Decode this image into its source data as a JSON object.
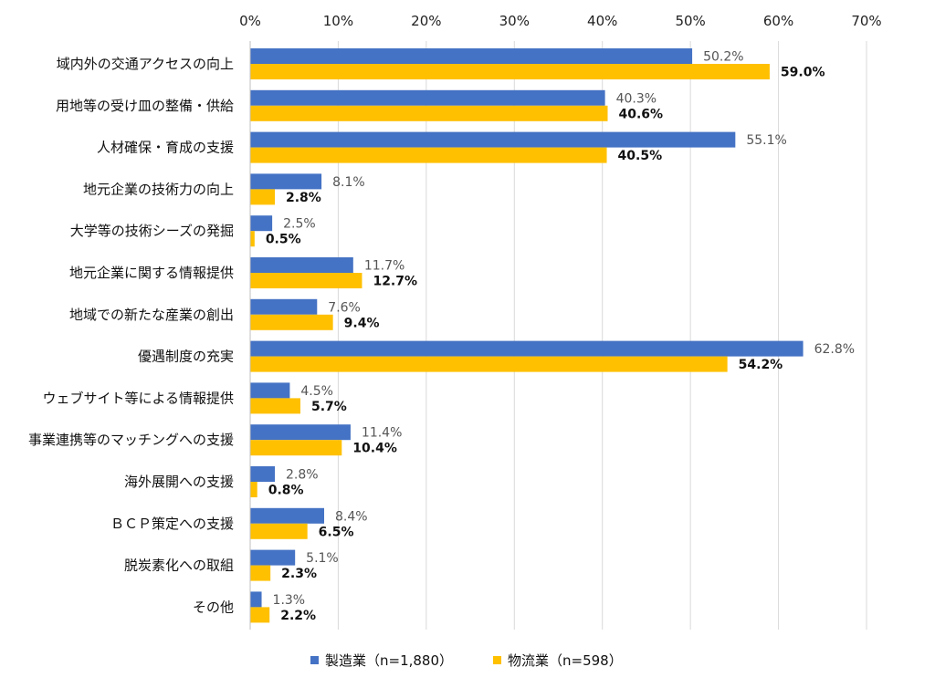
{
  "chart_data": {
    "type": "bar",
    "orientation": "horizontal",
    "x_ticks": [
      "0%",
      "10%",
      "20%",
      "30%",
      "40%",
      "50%",
      "60%",
      "70%"
    ],
    "xlim": [
      0,
      70
    ],
    "grid": true,
    "legend_position": "bottom",
    "categories": [
      "域内外の交通アクセスの向上",
      "用地等の受け皿の整備・供給",
      "人材確保・育成の支援",
      "地元企業の技術力の向上",
      "大学等の技術シーズの発掘",
      "地元企業に関する情報提供",
      "地域での新たな産業の創出",
      "優遇制度の充実",
      "ウェブサイト等による情報提供",
      "事業連携等のマッチングへの支援",
      "海外展開への支援",
      "ＢＣＰ策定への支援",
      "脱炭素化への取組",
      "その他"
    ],
    "series": [
      {
        "name": "製造業（n=1,880）",
        "color": "#4472C4",
        "values": [
          50.2,
          40.3,
          55.1,
          8.1,
          2.5,
          11.7,
          7.6,
          62.8,
          4.5,
          11.4,
          2.8,
          8.4,
          5.1,
          1.3
        ],
        "labels": [
          "50.2%",
          "40.3%",
          "55.1%",
          "8.1%",
          "2.5%",
          "11.7%",
          "7.6%",
          "62.8%",
          "4.5%",
          "11.4%",
          "2.8%",
          "8.4%",
          "5.1%",
          "1.3%"
        ]
      },
      {
        "name": "物流業（n=598）",
        "color": "#FFC000",
        "values": [
          59.0,
          40.6,
          40.5,
          2.8,
          0.5,
          12.7,
          9.4,
          54.2,
          5.7,
          10.4,
          0.8,
          6.5,
          2.3,
          2.2
        ],
        "labels": [
          "59.0%",
          "40.6%",
          "40.5%",
          "2.8%",
          "0.5%",
          "12.7%",
          "9.4%",
          "54.2%",
          "5.7%",
          "10.4%",
          "0.8%",
          "6.5%",
          "2.3%",
          "2.2%"
        ]
      }
    ]
  }
}
